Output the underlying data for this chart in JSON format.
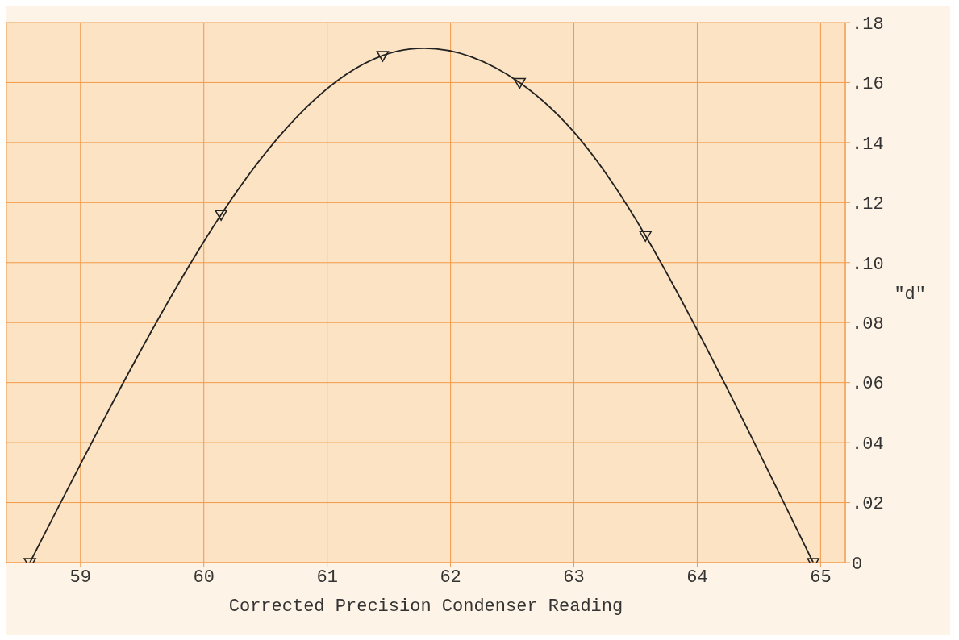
{
  "chart_data": {
    "type": "line",
    "xlabel": "Corrected Precision Condenser Reading",
    "ylabel": "\"d\"",
    "x": [
      58.59,
      60.14,
      61.45,
      62.56,
      63.58,
      64.94
    ],
    "series": [
      {
        "color": "#222222",
        "values": [
          0,
          0.116,
          0.169,
          0.16,
          0.109,
          0
        ]
      }
    ],
    "xlim": [
      58.4,
      65.2
    ],
    "xticks": [
      59,
      60,
      61,
      62,
      63,
      64,
      65
    ],
    "ylim": [
      0,
      0.18
    ],
    "yticks": [
      {
        "value": 0,
        "label": "0"
      },
      {
        "value": 0.02,
        "label": ".02"
      },
      {
        "value": 0.04,
        "label": ".04"
      },
      {
        "value": 0.06,
        "label": ".06"
      },
      {
        "value": 0.08,
        "label": ".08"
      },
      {
        "value": 0.1,
        "label": ".10"
      },
      {
        "value": 0.12,
        "label": ".12"
      },
      {
        "value": 0.14,
        "label": ".14"
      },
      {
        "value": 0.16,
        "label": ".16"
      },
      {
        "value": 0.18,
        "label": ".18"
      }
    ],
    "grid": true,
    "marker": "triangle",
    "line_style": "solid"
  }
}
